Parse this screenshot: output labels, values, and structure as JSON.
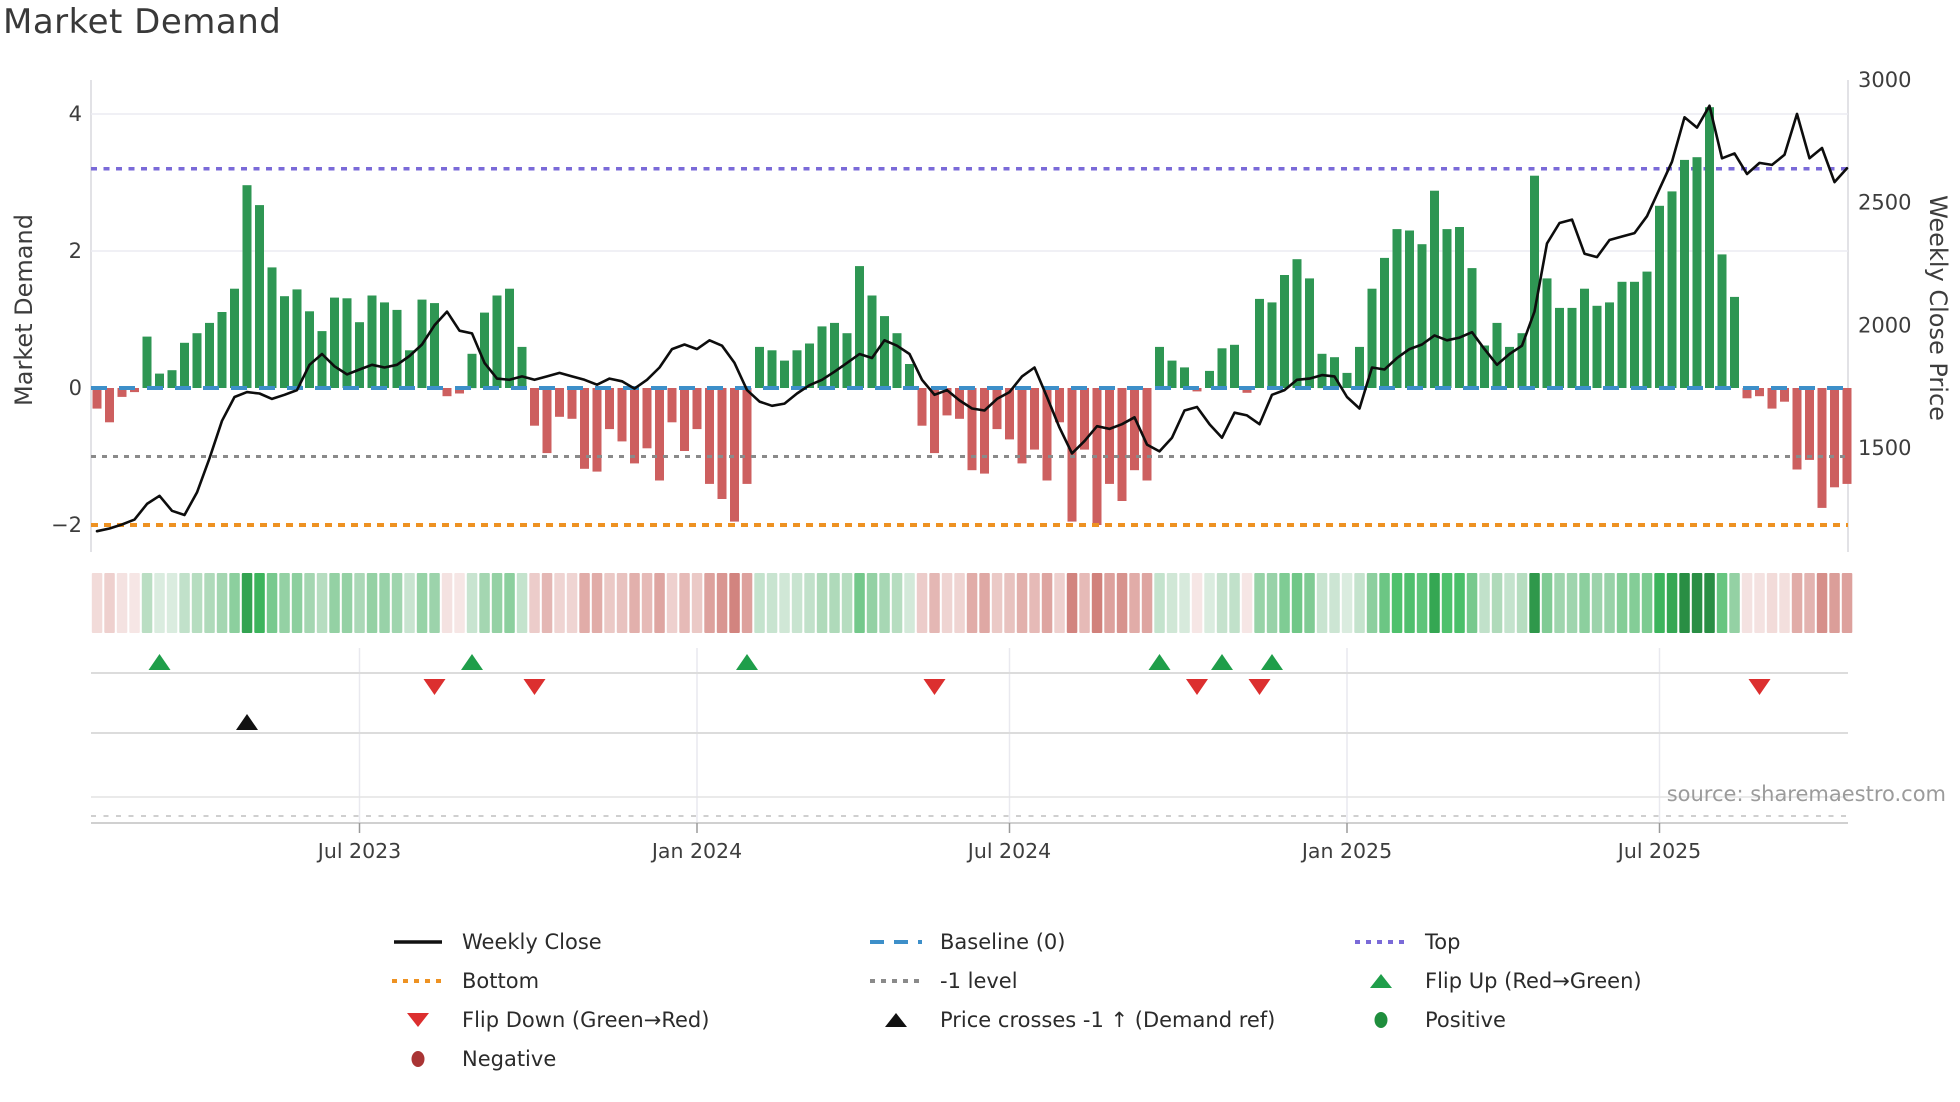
{
  "title": "Market Demand",
  "source": "source: sharemaestro.com",
  "axes": {
    "left_label": "Market Demand",
    "right_label": "Weekly Close Price",
    "left_ticks": [
      {
        "label": "4",
        "value": 4
      },
      {
        "label": "2",
        "value": 2
      },
      {
        "label": "0",
        "value": 0
      },
      {
        "label": "−2",
        "value": -2
      }
    ],
    "right_ticks": [
      {
        "label": "3000",
        "value": 3000
      },
      {
        "label": "2500",
        "value": 2500
      },
      {
        "label": "2000",
        "value": 2000
      },
      {
        "label": "1500",
        "value": 1500
      }
    ],
    "x_ticks": [
      {
        "label": "Jul 2023",
        "week": 21
      },
      {
        "label": "Jan 2024",
        "week": 48
      },
      {
        "label": "Jul 2024",
        "week": 73
      },
      {
        "label": "Jan 2025",
        "week": 100
      },
      {
        "label": "Jul 2025",
        "week": 125
      }
    ]
  },
  "chart_data": {
    "type": "bar+line",
    "x_unit": "week",
    "num_weeks": 141,
    "title": "Market Demand",
    "left_axis_range": [
      -2.6,
      4.5
    ],
    "right_axis_ticks": [
      1500,
      2000,
      2500,
      3000
    ],
    "reference_lines": {
      "top": 3.2,
      "baseline": 0,
      "minus_one_level": -1,
      "bottom": -2
    },
    "heatmap": "green/red intensity strip mirroring weekly demand values",
    "series": [
      {
        "name": "Market Demand",
        "type": "bar",
        "axis": "left",
        "values": [
          -0.3,
          -0.5,
          -0.13,
          -0.06,
          0.75,
          0.21,
          0.26,
          0.66,
          0.8,
          0.95,
          1.11,
          1.45,
          2.96,
          2.67,
          1.76,
          1.34,
          1.44,
          1.12,
          0.83,
          1.32,
          1.31,
          0.96,
          1.35,
          1.25,
          1.14,
          0.55,
          1.29,
          1.24,
          -0.12,
          -0.08,
          0.5,
          1.1,
          1.35,
          1.45,
          0.6,
          -0.55,
          -0.95,
          -0.42,
          -0.45,
          -1.18,
          -1.22,
          -0.6,
          -0.78,
          -1.1,
          -0.88,
          -1.35,
          -0.5,
          -0.92,
          -0.6,
          -1.4,
          -1.62,
          -1.95,
          -1.4,
          0.6,
          0.55,
          0.4,
          0.55,
          0.65,
          0.9,
          0.95,
          0.8,
          1.78,
          1.35,
          1.05,
          0.8,
          0.35,
          -0.55,
          -0.95,
          -0.4,
          -0.45,
          -1.2,
          -1.25,
          -0.6,
          -0.75,
          -1.1,
          -0.9,
          -1.35,
          -0.5,
          -1.95,
          -0.9,
          -2.0,
          -1.4,
          -1.65,
          -1.2,
          -1.35,
          0.6,
          0.4,
          0.3,
          -0.05,
          0.25,
          0.58,
          0.63,
          -0.07,
          1.3,
          1.25,
          1.65,
          1.88,
          1.6,
          0.5,
          0.45,
          0.22,
          0.6,
          1.45,
          1.9,
          2.32,
          2.3,
          2.1,
          2.88,
          2.32,
          2.35,
          1.75,
          0.62,
          0.95,
          0.6,
          0.8,
          3.1,
          1.6,
          1.17,
          1.17,
          1.45,
          1.2,
          1.25,
          1.55,
          1.55,
          1.7,
          2.66,
          2.87,
          3.33,
          3.37,
          4.1,
          1.95,
          1.33,
          -0.15,
          -0.12,
          -0.3,
          -0.2,
          -1.19,
          -1.05,
          -1.75,
          -1.45,
          -1.4
        ]
      },
      {
        "name": "Weekly Close",
        "type": "line",
        "axis": "right",
        "values": [
          1161,
          1172,
          1188,
          1208,
          1272,
          1305,
          1244,
          1227,
          1319,
          1458,
          1611,
          1708,
          1728,
          1722,
          1700,
          1717,
          1736,
          1839,
          1883,
          1833,
          1800,
          1820,
          1839,
          1828,
          1839,
          1875,
          1922,
          2000,
          2056,
          1978,
          1967,
          1847,
          1783,
          1778,
          1792,
          1778,
          1792,
          1806,
          1792,
          1778,
          1758,
          1783,
          1772,
          1742,
          1778,
          1828,
          1903,
          1922,
          1903,
          1939,
          1917,
          1847,
          1736,
          1689,
          1672,
          1681,
          1722,
          1756,
          1778,
          1811,
          1847,
          1883,
          1867,
          1939,
          1917,
          1883,
          1778,
          1717,
          1736,
          1694,
          1661,
          1653,
          1700,
          1728,
          1792,
          1828,
          1708,
          1583,
          1478,
          1528,
          1589,
          1578,
          1597,
          1625,
          1514,
          1486,
          1542,
          1653,
          1667,
          1597,
          1542,
          1644,
          1633,
          1597,
          1717,
          1736,
          1778,
          1783,
          1797,
          1792,
          1708,
          1661,
          1828,
          1820,
          1867,
          1903,
          1922,
          1959,
          1939,
          1950,
          1972,
          1903,
          1839,
          1883,
          1917,
          2056,
          2334,
          2417,
          2431,
          2292,
          2278,
          2348,
          2362,
          2376,
          2445,
          2556,
          2667,
          2848,
          2806,
          2895,
          2681,
          2701,
          2617,
          2662,
          2654,
          2695,
          2862,
          2681,
          2723,
          2584,
          2640
        ]
      }
    ],
    "markers": {
      "flip_up_weeks": [
        5,
        30,
        52,
        85,
        90,
        94
      ],
      "flip_down_weeks": [
        27,
        35,
        67,
        88,
        93,
        133
      ],
      "price_cross_weeks": [
        12
      ]
    }
  },
  "legend": {
    "columns": [
      [
        {
          "label": "Weekly Close",
          "swatch": "line-solid",
          "color": "#111111"
        },
        {
          "label": "Bottom",
          "swatch": "line-dotted",
          "color": "#ee9222"
        },
        {
          "label": "Flip Down (Green→Red)",
          "swatch": "triangle-down",
          "color": "#dc2f2f"
        },
        {
          "label": "Negative",
          "swatch": "circle",
          "color": "#a93434"
        }
      ],
      [
        {
          "label": "Baseline (0)",
          "swatch": "line-dashed",
          "color": "#3d8fc9"
        },
        {
          "label": "-1 level",
          "swatch": "line-dotted",
          "color": "#8a8a8a"
        },
        {
          "label": "Price crosses -1 ↑ (Demand ref)",
          "swatch": "triangle-up",
          "color": "#111111"
        }
      ],
      [
        {
          "label": "Top",
          "swatch": "line-dotted",
          "color": "#7a6ad8"
        },
        {
          "label": "Flip Up (Red→Green)",
          "swatch": "triangle-up",
          "color": "#1f9e4a"
        },
        {
          "label": "Positive",
          "swatch": "circle",
          "color": "#1f8e3d"
        }
      ]
    ]
  },
  "colors": {
    "bar_positive": "#2e9653",
    "bar_negative": "#cd5f5f",
    "price_line": "#0d0d0d",
    "baseline": "#3d8fc9",
    "top": "#7a6ad8",
    "bottom": "#ee9222",
    "minus_one": "#8a8a8a",
    "flip_up": "#1f9e4a",
    "flip_down": "#dc2f2f",
    "price_cross": "#111111",
    "grid": "#ececf2",
    "spine": "#d8d8de"
  }
}
